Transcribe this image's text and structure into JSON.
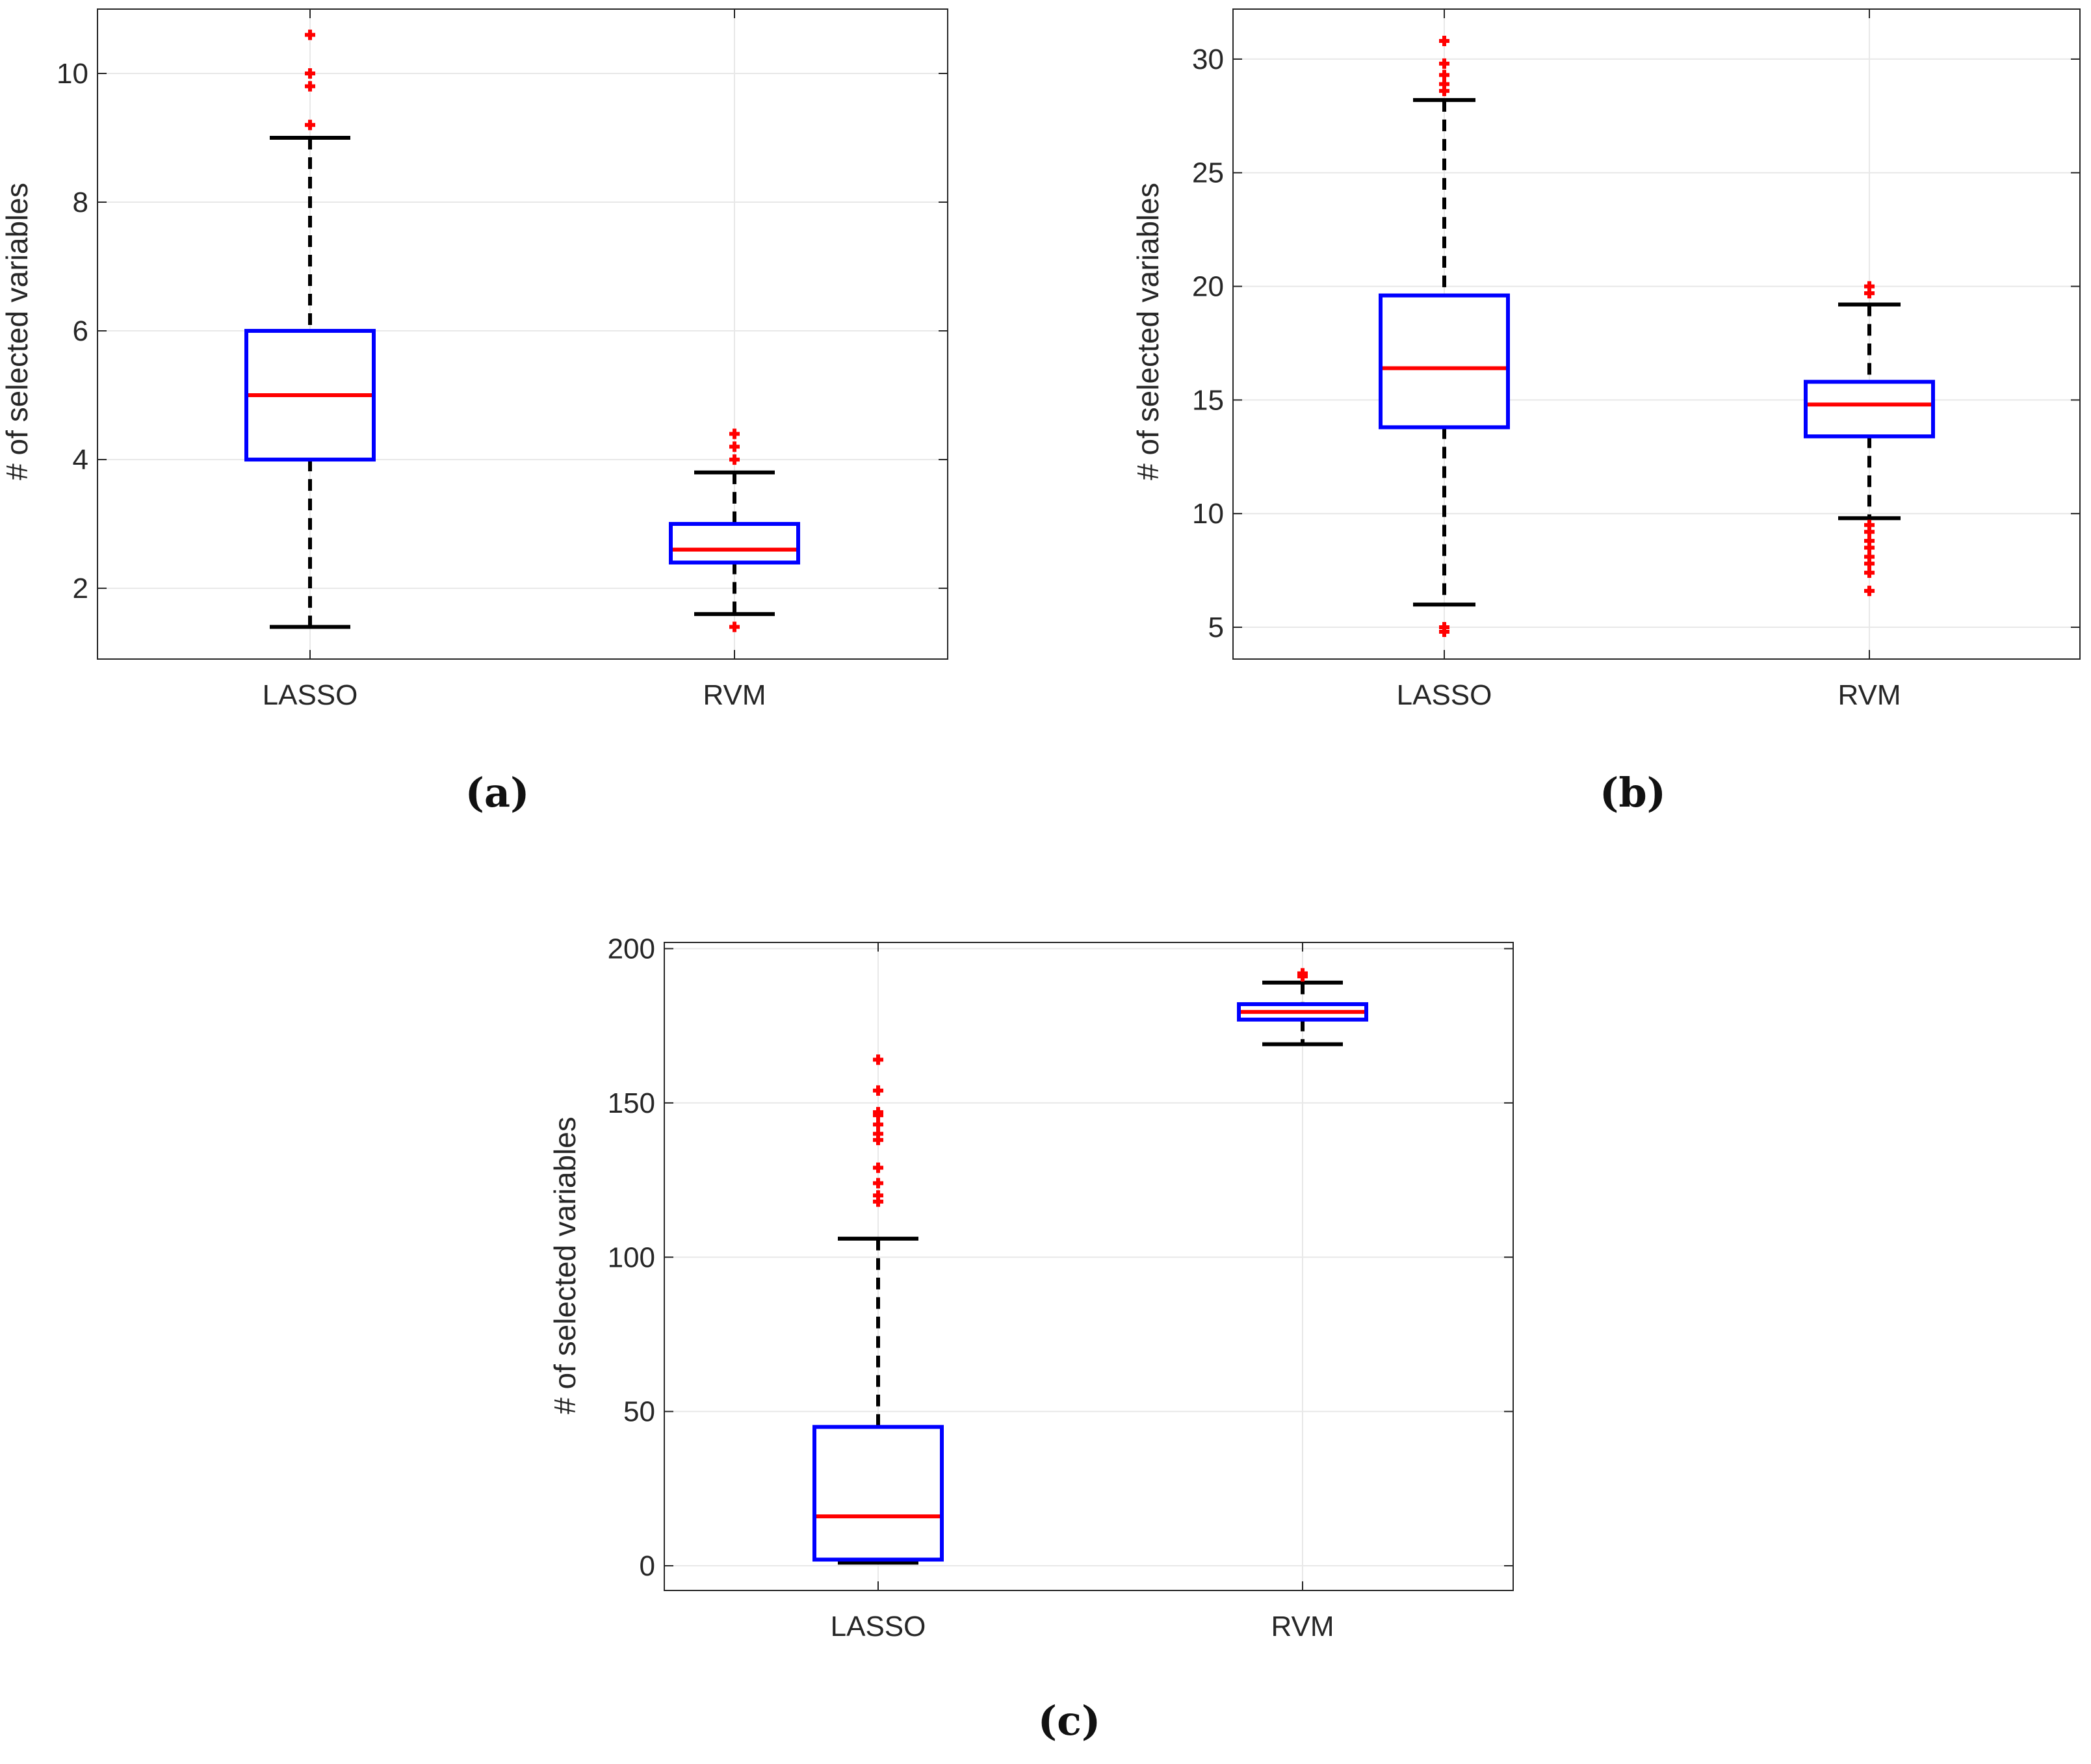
{
  "figure": {
    "panels": [
      "a",
      "b",
      "c"
    ]
  },
  "chart_data": [
    {
      "type": "box",
      "panel_label": "(a)",
      "title": "",
      "xlabel": "",
      "ylabel": "# of selected variables",
      "categories": [
        "LASSO",
        "RVM"
      ],
      "ylim": [
        0.9,
        11.0
      ],
      "yticks": [
        2,
        4,
        6,
        8,
        10
      ],
      "grid": true,
      "boxes": [
        {
          "name": "LASSO",
          "whisker_low": 1.4,
          "q1": 4.0,
          "median": 5.0,
          "q3": 6.0,
          "whisker_high": 9.0,
          "outliers": [
            9.2,
            9.8,
            10.0,
            10.6
          ]
        },
        {
          "name": "RVM",
          "whisker_low": 1.6,
          "q1": 2.4,
          "median": 2.6,
          "q3": 3.0,
          "whisker_high": 3.8,
          "outliers": [
            1.4,
            4.0,
            4.2,
            4.4
          ]
        }
      ]
    },
    {
      "type": "box",
      "panel_label": "(b)",
      "title": "",
      "xlabel": "",
      "ylabel": "# of selected variables",
      "categories": [
        "LASSO",
        "RVM"
      ],
      "ylim": [
        3.6,
        32.2
      ],
      "yticks": [
        5,
        10,
        15,
        20,
        25,
        30
      ],
      "grid": true,
      "boxes": [
        {
          "name": "LASSO",
          "whisker_low": 6.0,
          "q1": 13.8,
          "median": 16.4,
          "q3": 19.6,
          "whisker_high": 28.2,
          "outliers": [
            4.8,
            5.0,
            28.6,
            28.9,
            29.3,
            29.8,
            30.8
          ]
        },
        {
          "name": "RVM",
          "whisker_low": 9.8,
          "q1": 13.4,
          "median": 14.8,
          "q3": 15.8,
          "whisker_high": 19.2,
          "outliers": [
            6.6,
            7.4,
            7.8,
            8.1,
            8.5,
            8.8,
            9.2,
            9.5,
            19.7,
            20.0
          ]
        }
      ]
    },
    {
      "type": "box",
      "panel_label": "(c)",
      "title": "",
      "xlabel": "",
      "ylabel": "# of selected variables",
      "categories": [
        "LASSO",
        "RVM"
      ],
      "ylim": [
        -8,
        202
      ],
      "yticks": [
        0,
        50,
        100,
        150,
        200
      ],
      "grid": true,
      "boxes": [
        {
          "name": "LASSO",
          "whisker_low": 1,
          "q1": 2,
          "median": 16,
          "q3": 45,
          "whisker_high": 106,
          "outliers": [
            118,
            120,
            124,
            129,
            138,
            140,
            143,
            146,
            147,
            154,
            164
          ]
        },
        {
          "name": "RVM",
          "whisker_low": 169,
          "q1": 177,
          "median": 179.5,
          "q3": 182,
          "whisker_high": 189,
          "outliers": [
            191,
            192
          ]
        }
      ]
    }
  ],
  "colors": {
    "box": "#0000ff",
    "median": "#ff0000",
    "whisker": "#000000",
    "outlier": "#ff0000",
    "grid": "#e8e8e8",
    "axis": "#262626"
  }
}
